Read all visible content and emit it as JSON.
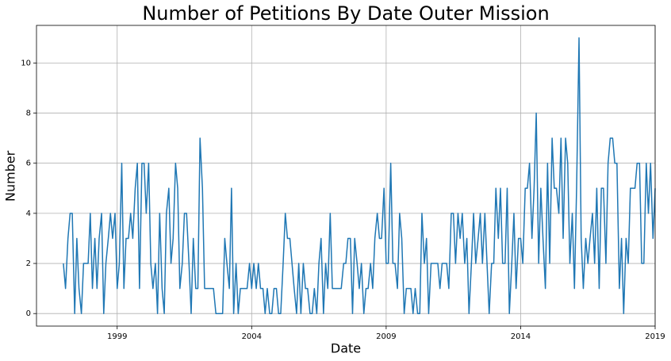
{
  "chart_data": {
    "type": "line",
    "title": "Number of Petitions By Date Outer Mission",
    "xlabel": "Date",
    "ylabel": "Number",
    "xlim": [
      1996.0,
      2019.0
    ],
    "xticks": [
      1999,
      2004,
      2009,
      2014,
      2019
    ],
    "ylim": [
      -0.5,
      11.5
    ],
    "yticks": [
      0,
      2,
      4,
      6,
      8,
      10
    ],
    "grid": true,
    "x": [
      1997.0,
      1997.08,
      1997.17,
      1997.25,
      1997.33,
      1997.42,
      1997.5,
      1997.58,
      1997.67,
      1997.75,
      1997.83,
      1997.92,
      1998.0,
      1998.08,
      1998.17,
      1998.25,
      1998.33,
      1998.42,
      1998.5,
      1998.58,
      1998.67,
      1998.75,
      1998.83,
      1998.92,
      1999.0,
      1999.08,
      1999.17,
      1999.25,
      1999.33,
      1999.42,
      1999.5,
      1999.58,
      1999.67,
      1999.75,
      1999.83,
      1999.92,
      2000.0,
      2000.08,
      2000.17,
      2000.25,
      2000.33,
      2000.42,
      2000.5,
      2000.58,
      2000.67,
      2000.75,
      2000.83,
      2000.92,
      2001.0,
      2001.08,
      2001.17,
      2001.25,
      2001.33,
      2001.42,
      2001.5,
      2001.58,
      2001.67,
      2001.75,
      2001.83,
      2001.92,
      2002.0,
      2002.08,
      2002.17,
      2002.25,
      2002.33,
      2002.42,
      2002.5,
      2002.58,
      2002.67,
      2002.75,
      2002.83,
      2002.92,
      2003.0,
      2003.08,
      2003.17,
      2003.25,
      2003.33,
      2003.42,
      2003.5,
      2003.58,
      2003.67,
      2003.75,
      2003.83,
      2003.92,
      2004.0,
      2004.08,
      2004.17,
      2004.25,
      2004.33,
      2004.42,
      2004.5,
      2004.58,
      2004.67,
      2004.75,
      2004.83,
      2004.92,
      2005.0,
      2005.08,
      2005.17,
      2005.25,
      2005.33,
      2005.42,
      2005.5,
      2005.58,
      2005.67,
      2005.75,
      2005.83,
      2005.92,
      2006.0,
      2006.08,
      2006.17,
      2006.25,
      2006.33,
      2006.42,
      2006.5,
      2006.58,
      2006.67,
      2006.75,
      2006.83,
      2006.92,
      2007.0,
      2007.08,
      2007.17,
      2007.25,
      2007.33,
      2007.42,
      2007.5,
      2007.58,
      2007.67,
      2007.75,
      2007.83,
      2007.92,
      2008.0,
      2008.08,
      2008.17,
      2008.25,
      2008.33,
      2008.42,
      2008.5,
      2008.58,
      2008.67,
      2008.75,
      2008.83,
      2008.92,
      2009.0,
      2009.08,
      2009.17,
      2009.25,
      2009.33,
      2009.42,
      2009.5,
      2009.58,
      2009.67,
      2009.75,
      2009.83,
      2009.92,
      2010.0,
      2010.08,
      2010.17,
      2010.25,
      2010.33,
      2010.42,
      2010.5,
      2010.58,
      2010.67,
      2010.75,
      2010.83,
      2010.92,
      2011.0,
      2011.08,
      2011.17,
      2011.25,
      2011.33,
      2011.42,
      2011.5,
      2011.58,
      2011.67,
      2011.75,
      2011.83,
      2011.92,
      2012.0,
      2012.08,
      2012.17,
      2012.25,
      2012.33,
      2012.42,
      2012.5,
      2012.58,
      2012.67,
      2012.75,
      2012.83,
      2012.92,
      2013.0,
      2013.08,
      2013.17,
      2013.25,
      2013.33,
      2013.42,
      2013.5,
      2013.58,
      2013.67,
      2013.75,
      2013.83,
      2013.92,
      2014.0,
      2014.08,
      2014.17,
      2014.25,
      2014.33,
      2014.42,
      2014.5,
      2014.58,
      2014.67,
      2014.75,
      2014.83,
      2014.92,
      2015.0,
      2015.08,
      2015.17,
      2015.25,
      2015.33,
      2015.42,
      2015.5,
      2015.58,
      2015.67,
      2015.75,
      2015.83,
      2015.92,
      2016.0,
      2016.08,
      2016.17,
      2016.25,
      2016.33,
      2016.42,
      2016.5,
      2016.58,
      2016.67,
      2016.75,
      2016.83,
      2016.92,
      2017.0,
      2017.08,
      2017.17,
      2017.25,
      2017.33,
      2017.42,
      2017.5,
      2017.58,
      2017.67,
      2017.75,
      2017.83,
      2017.92,
      2018.0,
      2018.08,
      2018.17,
      2018.25,
      2018.33,
      2018.42,
      2018.5,
      2018.58,
      2018.67,
      2018.75,
      2018.83,
      2018.92,
      2019.0
    ],
    "series": [
      {
        "color": "#1f77b4",
        "values": [
          2,
          1,
          3,
          4,
          4,
          0,
          3,
          1,
          0,
          2,
          2,
          2,
          4,
          1,
          3,
          1,
          3,
          4,
          0,
          2,
          3,
          4,
          3,
          4,
          1,
          2,
          6,
          1,
          3,
          3,
          4,
          3,
          5,
          6,
          1,
          6,
          6,
          4,
          6,
          2,
          1,
          2,
          0,
          4,
          1,
          0,
          4,
          5,
          2,
          3,
          6,
          5,
          1,
          2,
          4,
          4,
          2,
          0,
          3,
          1,
          1,
          7,
          5,
          1,
          1,
          1,
          1,
          1,
          0,
          0,
          0,
          0,
          3,
          2,
          1,
          5,
          0,
          2,
          0,
          1,
          1,
          1,
          1,
          2,
          1,
          2,
          1,
          2,
          1,
          1,
          0,
          1,
          0,
          0,
          1,
          1,
          0,
          0,
          2,
          4,
          3,
          3,
          2,
          1,
          0,
          2,
          0,
          2,
          1,
          1,
          0,
          0,
          1,
          0,
          2,
          3,
          0,
          2,
          1,
          4,
          1,
          1,
          1,
          1,
          1,
          2,
          2,
          3,
          3,
          0,
          3,
          2,
          1,
          2,
          0,
          1,
          1,
          2,
          1,
          3,
          4,
          3,
          3,
          5,
          2,
          2,
          6,
          2,
          2,
          1,
          4,
          3,
          0,
          1,
          1,
          1,
          0,
          1,
          0,
          0,
          4,
          2,
          3,
          0,
          2,
          2,
          2,
          2,
          1,
          2,
          2,
          2,
          1,
          4,
          4,
          2,
          4,
          3,
          4,
          2,
          3,
          0,
          2,
          4,
          2,
          3,
          4,
          2,
          4,
          2,
          0,
          2,
          2,
          5,
          3,
          5,
          2,
          2,
          5,
          0,
          2,
          4,
          1,
          3,
          3,
          2,
          5,
          5,
          6,
          3,
          5,
          8,
          2,
          5,
          3,
          1,
          6,
          2,
          7,
          5,
          5,
          4,
          7,
          3,
          7,
          6,
          2,
          4,
          1,
          5,
          11,
          3,
          1,
          3,
          2,
          3,
          4,
          2,
          5,
          1,
          5,
          5,
          2,
          6,
          7,
          7,
          6,
          6,
          1,
          3,
          0,
          3,
          2,
          5,
          5,
          5,
          6,
          6,
          2,
          2,
          6,
          4,
          6,
          3,
          5
        ]
      }
    ]
  }
}
